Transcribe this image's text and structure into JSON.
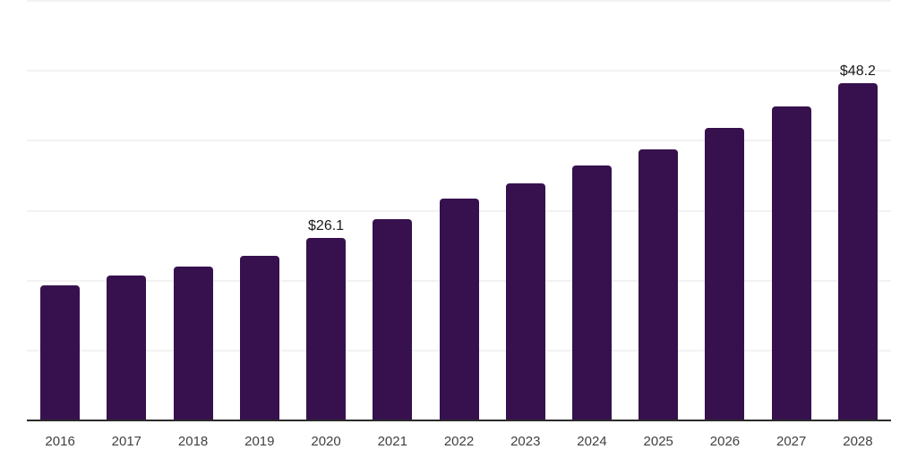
{
  "chart_data": {
    "type": "bar",
    "title": "",
    "xlabel": "",
    "ylabel": "",
    "categories": [
      "2016",
      "2017",
      "2018",
      "2019",
      "2020",
      "2021",
      "2022",
      "2023",
      "2024",
      "2025",
      "2026",
      "2027",
      "2028"
    ],
    "values": [
      19.3,
      20.7,
      22.0,
      23.5,
      26.1,
      28.8,
      31.7,
      33.9,
      36.5,
      38.8,
      41.8,
      44.9,
      48.2
    ],
    "data_labels": [
      "",
      "",
      "",
      "",
      "$26.1",
      "",
      "",
      "",
      "",
      "",
      "",
      "",
      "$48.2"
    ],
    "ylim": [
      0,
      60
    ],
    "grid_step": 10,
    "gridlines": "horizontal",
    "y_tick_labels_visible": false,
    "legend": "none",
    "colors": {
      "bar": "#36114E",
      "grid": "#F2F2F2",
      "axis": "#2B2B2B",
      "tick_label": "#414141",
      "value_label": "#1A1A1A",
      "background": "#FFFFFF"
    }
  }
}
